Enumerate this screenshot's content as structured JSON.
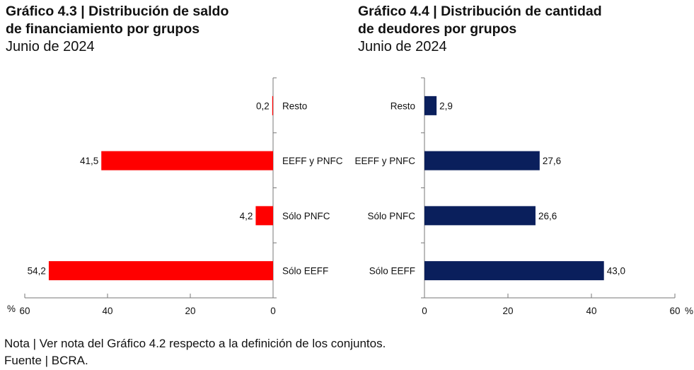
{
  "chart_data": [
    {
      "type": "bar",
      "orientation": "horizontal",
      "direction": "right-to-left",
      "title": "Gráfico 4.3 | Distribución de saldo de financiamiento por grupos",
      "title_line1": "Gráfico 4.3 | Distribución de saldo",
      "title_line2": "de financiamiento por grupos",
      "subtitle": "Junio de 2024",
      "categories": [
        "Resto",
        "EEFF y PNFC",
        "Sólo PNFC",
        "Sólo EEFF"
      ],
      "values": [
        0.2,
        41.5,
        4.2,
        54.2
      ],
      "data_labels": [
        "0,2",
        "41,5",
        "4,2",
        "54,2"
      ],
      "xlim": [
        0,
        60
      ],
      "xticks": [
        0,
        20,
        40,
        60
      ],
      "xtick_labels": [
        "0",
        "20",
        "40",
        "60"
      ],
      "unit": "%",
      "color": "#ff0000",
      "grid": false
    },
    {
      "type": "bar",
      "orientation": "horizontal",
      "direction": "left-to-right",
      "title": "Gráfico 4.4 | Distribución de cantidad de deudores por grupos",
      "title_line1": "Gráfico 4.4 | Distribución de cantidad",
      "title_line2": "de deudores por grupos",
      "subtitle": "Junio de 2024",
      "categories": [
        "Resto",
        "EEFF y PNFC",
        "Sólo PNFC",
        "Sólo EEFF"
      ],
      "values": [
        2.9,
        27.6,
        26.6,
        43.0
      ],
      "data_labels": [
        "2,9",
        "27,6",
        "26,6",
        "43,0"
      ],
      "xlim": [
        0,
        60
      ],
      "xticks": [
        0,
        20,
        40,
        60
      ],
      "xtick_labels": [
        "0",
        "20",
        "40",
        "60"
      ],
      "unit": "%",
      "color": "#0a1f5c",
      "grid": false
    }
  ],
  "notes": {
    "nota": "Nota | Ver nota del Gráfico 4.2 respecto a la definición de los conjuntos.",
    "fuente": "Fuente | BCRA."
  }
}
